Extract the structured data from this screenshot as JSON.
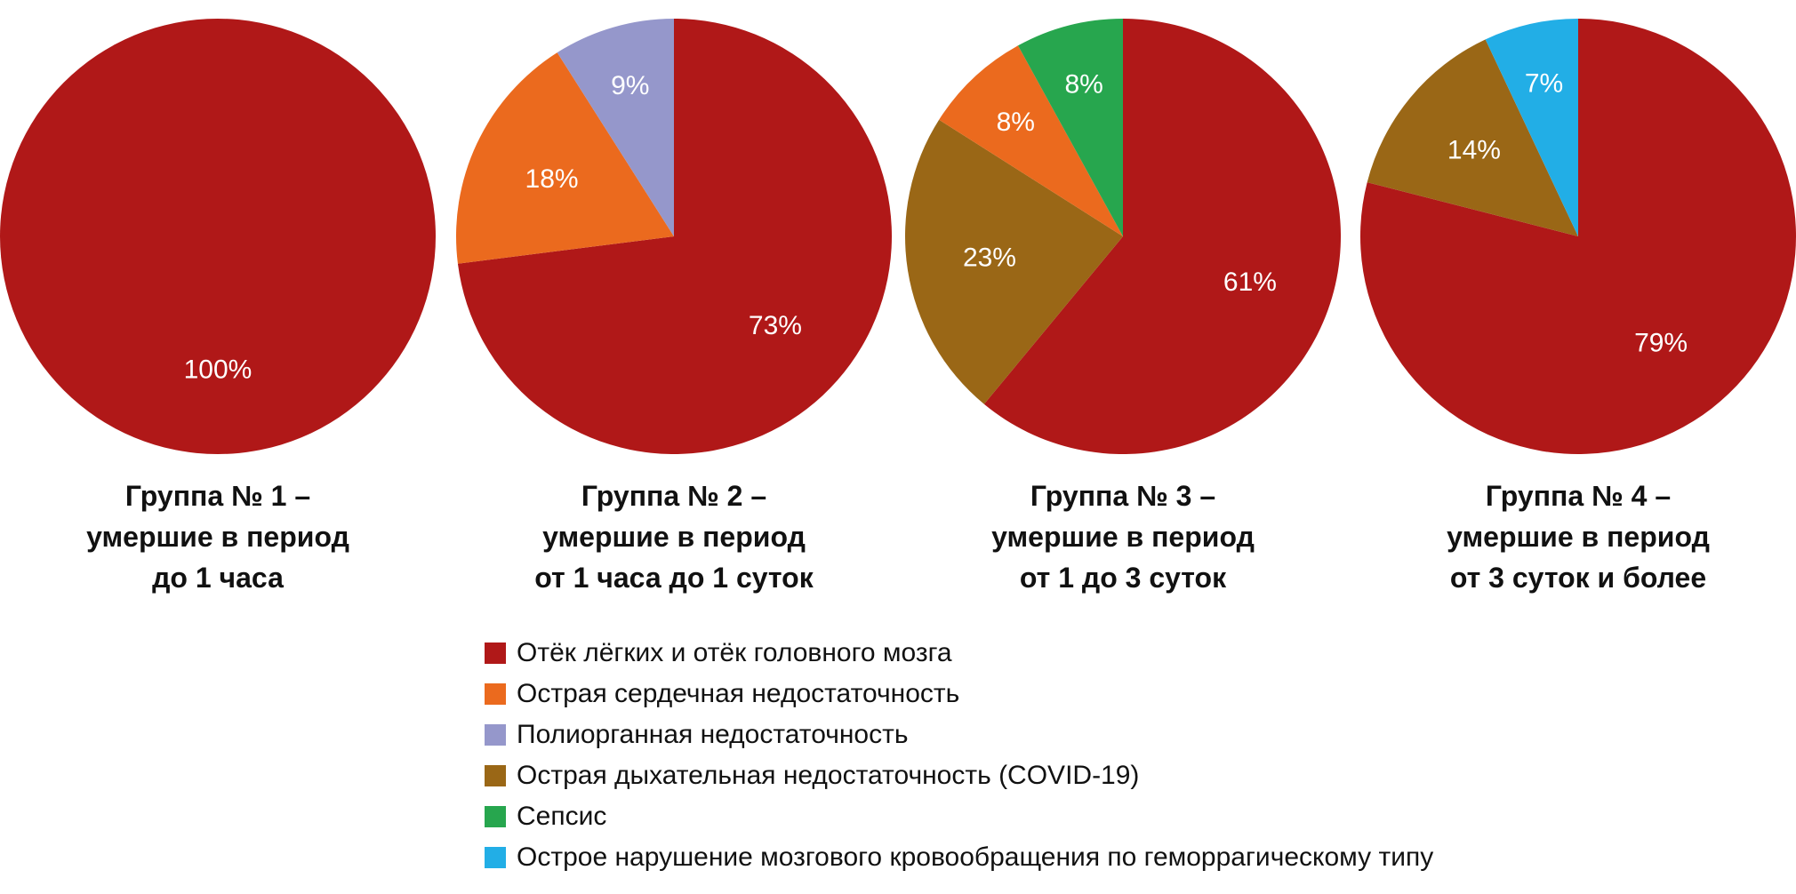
{
  "chart_data": {
    "type": "pie",
    "categories": [
      "Отёк лёгких и отёк головного мозга",
      "Острая сердечная недостаточность",
      "Полиорганная недостаточность",
      "Острая дыхательная недостаточность (COVID-19)",
      "Сепсис",
      "Острое нарушение мозгового кровообращения по геморрагическому типу"
    ],
    "colors": [
      "#B01818",
      "#EB6A1E",
      "#9597CB",
      "#9A6716",
      "#27A64E",
      "#22AEE6"
    ],
    "legend": {
      "position": "bottom"
    },
    "pies": [
      {
        "title": [
          "Группа № 1 –",
          "умершие в период",
          "до 1 часа"
        ],
        "slices": [
          {
            "category": 0,
            "value": 100,
            "label": "100%"
          }
        ]
      },
      {
        "title": [
          "Группа № 2 –",
          "умершие в период",
          "от 1 часа до 1 суток"
        ],
        "slices": [
          {
            "category": 0,
            "value": 73,
            "label": "73%"
          },
          {
            "category": 1,
            "value": 18,
            "label": "18%"
          },
          {
            "category": 2,
            "value": 9,
            "label": "9%"
          }
        ]
      },
      {
        "title": [
          "Группа № 3 –",
          "умершие в период",
          "от 1 до 3 суток"
        ],
        "slices": [
          {
            "category": 0,
            "value": 61,
            "label": "61%"
          },
          {
            "category": 3,
            "value": 23,
            "label": "23%"
          },
          {
            "category": 1,
            "value": 8,
            "label": "8%"
          },
          {
            "category": 4,
            "value": 8,
            "label": "8%"
          }
        ]
      },
      {
        "title": [
          "Группа № 4 –",
          "умершие в период",
          "от 3 суток и более"
        ],
        "slices": [
          {
            "category": 0,
            "value": 79,
            "label": "79%"
          },
          {
            "category": 3,
            "value": 14,
            "label": "14%"
          },
          {
            "category": 5,
            "value": 7,
            "label": "7%"
          }
        ]
      }
    ]
  }
}
